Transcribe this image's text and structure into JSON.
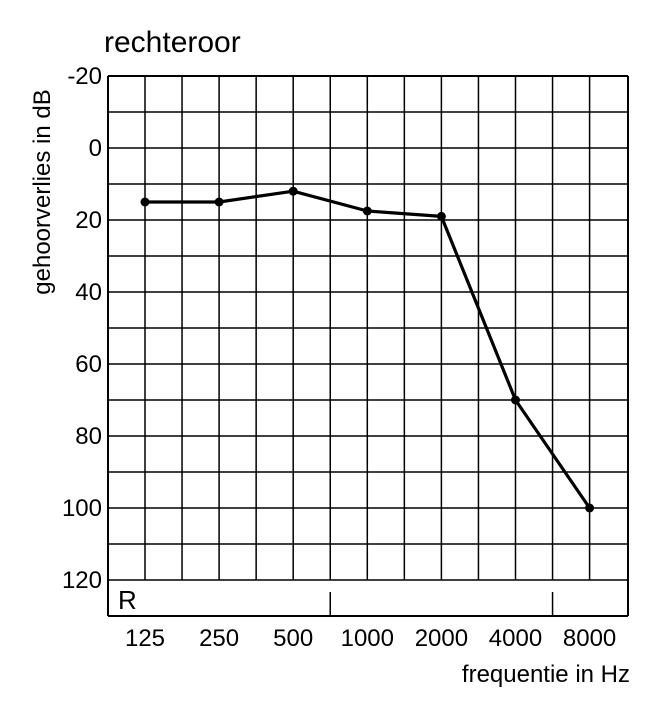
{
  "chart_data": {
    "type": "line",
    "title": "rechteroor",
    "xlabel": "frequentie in Hz",
    "ylabel": "gehoorverlies in dB",
    "corner_label": "R",
    "categories": [
      "125",
      "250",
      "500",
      "1000",
      "2000",
      "4000",
      "8000"
    ],
    "y_ticks": [
      "-20",
      "0",
      "20",
      "40",
      "60",
      "80",
      "100",
      "120"
    ],
    "ylim": [
      -20,
      130
    ],
    "y_inverted": true,
    "grid": true,
    "series": [
      {
        "values": [
          15,
          15,
          12,
          17.5,
          19,
          70,
          100
        ]
      }
    ],
    "colors": {
      "line": "#000000",
      "grid": "#000000"
    }
  }
}
